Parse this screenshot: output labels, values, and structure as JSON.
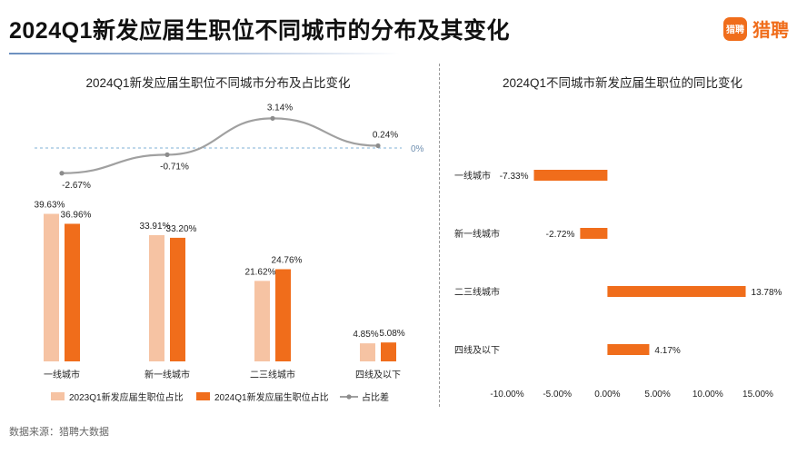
{
  "page": {
    "title": "2024Q1新发应届生职位不同城市的分布及其变化",
    "logo_badge": "猎聘",
    "logo_text": "猎聘",
    "source": "数据来源：猎聘大数据"
  },
  "colors": {
    "bar_2023": "#f6c3a3",
    "bar_2024": "#f06d1b",
    "line": "#a0a0a0",
    "zero_line": "#7fb0d6",
    "yoy_bar": "#f06d1b",
    "accent": "#f06d1b"
  },
  "chart_data": [
    {
      "type": "bar",
      "title": "2024Q1新发应届生职位不同城市分布及占比变化",
      "categories": [
        "一线城市",
        "新一线城市",
        "二三线城市",
        "四线及以下"
      ],
      "series": [
        {
          "name": "2023Q1新发应届生职位占比",
          "values": [
            39.63,
            33.91,
            21.62,
            4.85
          ],
          "labels": [
            "39.63%",
            "33.91%",
            "21.62%",
            "4.85%"
          ]
        },
        {
          "name": "2024Q1新发应届生职位占比",
          "values": [
            36.96,
            33.2,
            24.76,
            5.08
          ],
          "labels": [
            "36.96%",
            "33.20%",
            "24.76%",
            "5.08%"
          ]
        },
        {
          "name": "占比差",
          "type": "line",
          "values": [
            -2.67,
            -0.71,
            3.14,
            0.24
          ],
          "labels": [
            "-2.67%",
            "-0.71%",
            "3.14%",
            "0.24%"
          ]
        }
      ],
      "reference_line": {
        "value": 0,
        "label": "0%"
      },
      "legend": [
        "2023Q1新发应届生职位占比",
        "2024Q1新发应届生职位占比",
        "占比差"
      ],
      "legend_position": "bottom"
    },
    {
      "type": "bar",
      "orientation": "horizontal",
      "title": "2024Q1不同城市新发应届生职位的同比变化",
      "categories": [
        "一线城市",
        "新一线城市",
        "二三线城市",
        "四线及以下"
      ],
      "values": [
        -7.33,
        -2.72,
        13.78,
        4.17
      ],
      "labels": [
        "-7.33%",
        "-2.72%",
        "13.78%",
        "4.17%"
      ],
      "xlim": [
        -10,
        15
      ],
      "xticks": [
        "-10.00%",
        "-5.00%",
        "0.00%",
        "5.00%",
        "10.00%",
        "15.00%"
      ]
    }
  ]
}
